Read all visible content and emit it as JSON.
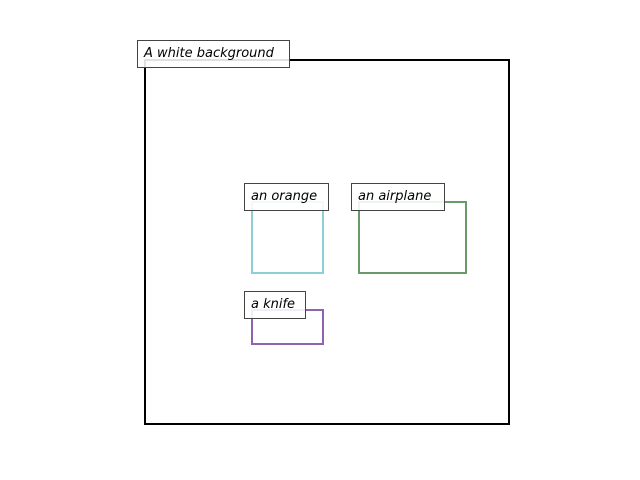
{
  "scene": {
    "background": {
      "label": "A white background",
      "color": "#ffffff",
      "border_color": "#000000"
    },
    "objects": [
      {
        "id": "orange",
        "label": "an orange",
        "color": "#8ecfd6"
      },
      {
        "id": "airplane",
        "label": "an airplane",
        "color": "#6a9a6a"
      },
      {
        "id": "knife",
        "label": "a knife",
        "color": "#8e63b0"
      }
    ]
  }
}
